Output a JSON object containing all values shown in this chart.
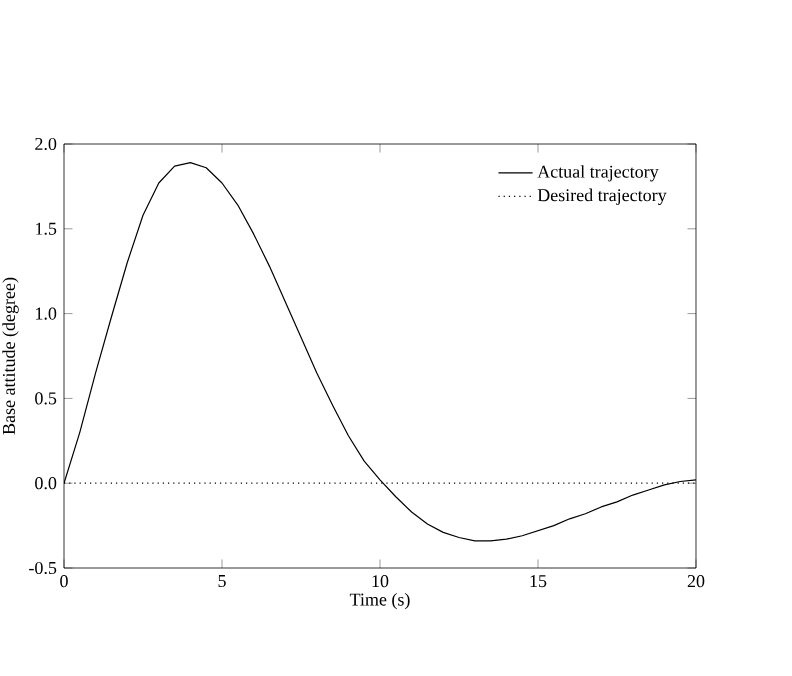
{
  "chart_data": {
    "type": "line",
    "xlabel": "Time (s)",
    "ylabel": "Base attitude (degree)",
    "xlim": [
      0,
      20
    ],
    "ylim": [
      -0.5,
      2.0
    ],
    "xticks": [
      0,
      5,
      10,
      15,
      20
    ],
    "yticks": [
      {
        "value": -0.5,
        "label": "-0.5"
      },
      {
        "value": 0,
        "label": "0.0"
      },
      {
        "value": 0.5,
        "label": "0.5"
      },
      {
        "value": 1.0,
        "label": "1.0"
      },
      {
        "value": 1.5,
        "label": "1.5"
      },
      {
        "value": 2.0,
        "label": "2.0"
      }
    ],
    "grid": false,
    "legend": "top right",
    "marker": "none",
    "series": [
      {
        "name": "Actual trajectory",
        "color": "#000000",
        "line_style": "solid",
        "x": [
          0,
          0.5,
          1,
          1.5,
          2,
          2.5,
          3,
          3.5,
          4,
          4.5,
          5,
          5.5,
          6,
          6.5,
          7,
          7.5,
          8,
          8.5,
          9,
          9.5,
          10,
          10.5,
          11,
          11.5,
          12,
          12.5,
          13,
          13.5,
          14,
          14.5,
          15,
          15.5,
          16,
          16.5,
          17,
          17.5,
          18,
          18.5,
          19,
          19.5,
          20
        ],
        "values": [
          0,
          0.3,
          0.65,
          0.98,
          1.3,
          1.58,
          1.77,
          1.87,
          1.89,
          1.86,
          1.77,
          1.64,
          1.47,
          1.28,
          1.07,
          0.86,
          0.65,
          0.46,
          0.28,
          0.13,
          0.02,
          -0.08,
          -0.17,
          -0.24,
          -0.29,
          -0.32,
          -0.34,
          -0.34,
          -0.33,
          -0.31,
          -0.28,
          -0.25,
          -0.21,
          -0.18,
          -0.14,
          -0.11,
          -0.07,
          -0.04,
          -0.01,
          0.01,
          0.02
        ]
      },
      {
        "name": "Desired trajectory",
        "color": "#000000",
        "line_style": "dotted",
        "x": [
          0,
          20
        ],
        "values": [
          0,
          0
        ]
      }
    ]
  }
}
